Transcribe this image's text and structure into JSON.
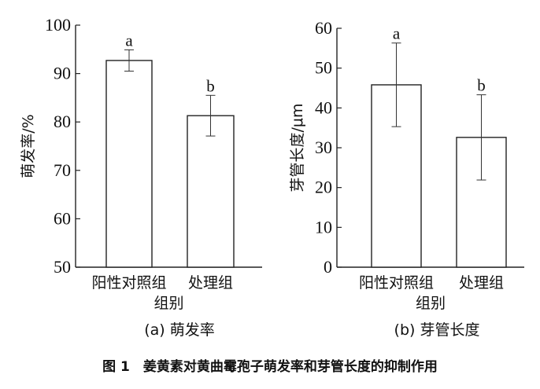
{
  "caption": "图 1　姜黄素对黄曲霉孢子萌发率和芽管长度的抑制作用",
  "chart_data": [
    {
      "type": "bar",
      "title": "(a)  萌发率",
      "xlabel": "组别",
      "ylabel": "萌发率/%",
      "categories": [
        "阳性对照组",
        "处理组"
      ],
      "values": [
        92.7,
        81.3
      ],
      "error": [
        2.2,
        4.2
      ],
      "letters": [
        "a",
        "b"
      ],
      "ylim": [
        50,
        100
      ],
      "yticks": [
        50,
        60,
        70,
        80,
        90,
        100
      ],
      "grid": false
    },
    {
      "type": "bar",
      "title": "(b)  芽管长度",
      "xlabel": "组别",
      "ylabel": "芽管长度/μm",
      "categories": [
        "阳性对照组",
        "处理组"
      ],
      "values": [
        45.8,
        32.6
      ],
      "error": [
        10.5,
        10.7
      ],
      "letters": [
        "a",
        "b"
      ],
      "ylim": [
        0,
        60
      ],
      "yticks": [
        0,
        10,
        20,
        30,
        40,
        50,
        60
      ],
      "grid": false
    }
  ]
}
